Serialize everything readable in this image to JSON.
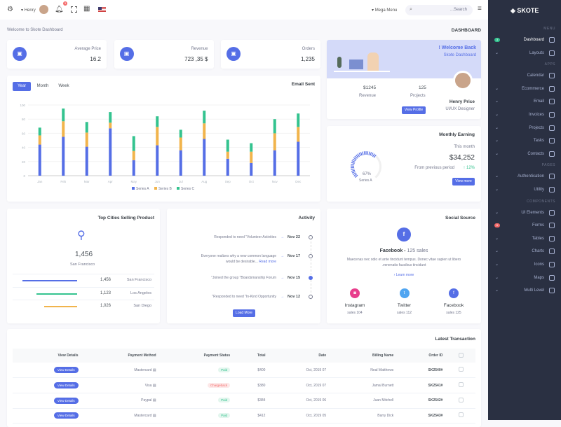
{
  "topbar": {
    "user": "Henry",
    "notification_count": "3",
    "mega_menu": "Mega Menu",
    "search_placeholder": "...Search"
  },
  "sidebar": {
    "brand": "SKOTE",
    "sections": [
      {
        "title": "MENU",
        "items": [
          {
            "label": "Dashboard",
            "badge": "3",
            "badge_color": "#34c38f"
          },
          {
            "label": "Layouts",
            "chevron": true
          }
        ]
      },
      {
        "title": "APPS",
        "items": [
          {
            "label": "Calendar"
          },
          {
            "label": "Ecommerce",
            "chevron": true
          },
          {
            "label": "Email",
            "chevron": true
          },
          {
            "label": "Invoices",
            "chevron": true
          },
          {
            "label": "Projects",
            "chevron": true
          },
          {
            "label": "Tasks",
            "chevron": true
          },
          {
            "label": "Contacts",
            "chevron": true
          }
        ]
      },
      {
        "title": "PAGES",
        "items": [
          {
            "label": "Authentication",
            "chevron": true
          },
          {
            "label": "Utility",
            "chevron": true
          }
        ]
      },
      {
        "title": "COMPONENTS",
        "items": [
          {
            "label": "UI Elements",
            "chevron": true
          },
          {
            "label": "Forms",
            "badge": "6",
            "badge_color": "#f46a6a"
          },
          {
            "label": "Tables",
            "chevron": true
          },
          {
            "label": "Charts",
            "chevron": true
          },
          {
            "label": "Icons",
            "chevron": true
          },
          {
            "label": "Maps",
            "chevron": true
          },
          {
            "label": "Multi Level",
            "chevron": true
          }
        ]
      }
    ]
  },
  "page": {
    "welcome": "Welcome to Skote Dashboard",
    "title": "DASHBOARD"
  },
  "stats": [
    {
      "label": "Average Price",
      "value": "16.2",
      "icon": "tag-icon"
    },
    {
      "label": "Revenue",
      "value": "723 ,35 $",
      "icon": "archive-icon"
    },
    {
      "label": "Orders",
      "value": "1,235",
      "icon": "copy-icon"
    }
  ],
  "welcome_card": {
    "title": "! Welcome Back",
    "subtitle": "Skote Dashboard",
    "name": "Henry Price",
    "role": "UI/UX Designer",
    "revenue_value": "$1245",
    "revenue_label": "Revenue",
    "projects_value": "125",
    "projects_label": "Projects",
    "button": "View Profile"
  },
  "monthly": {
    "title": "Monthly Earning",
    "period": "This month",
    "value": "$34,252",
    "compare": "From previous period",
    "change": "12%",
    "gauge_percent": 67,
    "gauge_label": "67%",
    "gauge_series": "Series A",
    "button": "View more"
  },
  "colors": {
    "primary": "#556ee6",
    "seriesA": "#556ee6",
    "seriesB": "#f1b44c",
    "seriesC": "#34c38f",
    "sidebar": "#2a3042"
  },
  "email_card": {
    "title": "Email Sent",
    "tabs": [
      "Year",
      "Month",
      "Week"
    ],
    "active_tab": "Year"
  },
  "chart_data": {
    "type": "bar",
    "stacked": true,
    "categories": [
      "Jan",
      "Feb",
      "Mar",
      "Apr",
      "May",
      "Jun",
      "Jul",
      "Aug",
      "Sep",
      "Oct",
      "Nov",
      "Dec"
    ],
    "series": [
      {
        "name": "Series A",
        "values": [
          44,
          55,
          41,
          67,
          22,
          43,
          36,
          52,
          24,
          18,
          36,
          48
        ]
      },
      {
        "name": "Series B",
        "values": [
          13,
          22,
          20,
          8,
          13,
          26,
          18,
          22,
          10,
          16,
          24,
          21
        ]
      },
      {
        "name": "Series C",
        "values": [
          11,
          18,
          15,
          15,
          21,
          15,
          11,
          18,
          17,
          12,
          20,
          19
        ]
      }
    ],
    "ylim": [
      0,
      100
    ],
    "yticks": [
      0,
      20,
      40,
      60,
      80,
      100
    ],
    "grid": true,
    "legend": "bottom"
  },
  "cities": {
    "title": "Top Cities Selling Product",
    "top_value": "1,456",
    "top_city": "San Francisco",
    "rows": [
      {
        "value": "1,456",
        "city": "San Francisco",
        "percent": 100,
        "color": "#556ee6"
      },
      {
        "value": "1,123",
        "city": "Los Angeles",
        "percent": 75,
        "color": "#34c38f"
      },
      {
        "value": "1,026",
        "city": "San Diego",
        "percent": 60,
        "color": "#f1b44c"
      }
    ]
  },
  "activity": {
    "title": "Activity",
    "items": [
      {
        "date": "Nov 22",
        "text": "Responded to need \"Volunteer Activities"
      },
      {
        "date": "Nov 17",
        "text": "Everyone realizes why a new common language",
        "text2": "would be desirable...",
        "link": "Read more"
      },
      {
        "date": "Nov 15",
        "text": "\"Joined the group \"Boardsmanship Forum",
        "active": true
      },
      {
        "date": "Nov 12",
        "text": "\"Responded to need \"In-Kind Opportunity"
      }
    ],
    "button": "Load More"
  },
  "social": {
    "title": "Social Source",
    "headline": "Facebook - ",
    "headline_sales": "125 sales",
    "desc1": "Maecenas nec odio et ante tincidunt tempus. Donec vitae sapien ut libero",
    "desc2": ".venenatis faucibus tincidunt",
    "learn": "Learn more",
    "sources": [
      {
        "name": "Instagram",
        "sales": "sales 104",
        "color": "#e83e8c",
        "glyph": "◙"
      },
      {
        "name": "Twitter",
        "sales": "sales 112",
        "color": "#50a5f1",
        "glyph": "t"
      },
      {
        "name": "Facebook",
        "sales": "sales 125",
        "color": "#556ee6",
        "glyph": "f"
      }
    ]
  },
  "transactions": {
    "title": "Latest Transaction",
    "headers": [
      "View Details",
      "Payment Method",
      "Payment Status",
      "Total",
      "Date",
      "Billing Name",
      "Order ID"
    ],
    "rows": [
      {
        "button": "View Details",
        "method": "Mastercard",
        "status": "Paid",
        "total": "$400",
        "date": "Oct, 2019 07",
        "name": "Neal Matthews",
        "id": "SK2540#"
      },
      {
        "button": "View Details",
        "method": "Visa",
        "status": "Chargeback",
        "total": "$380",
        "date": "Oct, 2019 07",
        "name": "Jamal Burnett",
        "id": "SK2541#"
      },
      {
        "button": "View Details",
        "method": "Paypal",
        "status": "Paid",
        "total": "$384",
        "date": "Oct, 2019 06",
        "name": "Juan Mitchell",
        "id": "SK2542#"
      },
      {
        "button": "View Details",
        "method": "Mastercard",
        "status": "Paid",
        "total": "$412",
        "date": "Oct, 2019 05",
        "name": "Barry Dick",
        "id": "SK2543#"
      }
    ]
  }
}
